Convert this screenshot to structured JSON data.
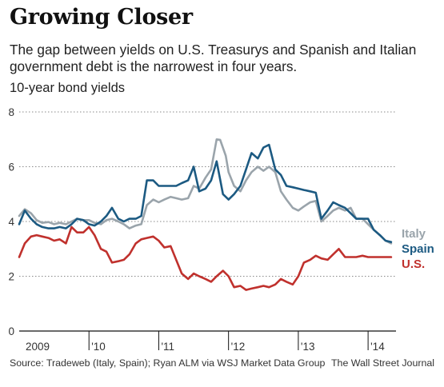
{
  "header": {
    "title": "Growing Closer",
    "subtitle": "The gap between yields on U.S. Treasurys and Spanish and Italian government debt is the narrowest in four years.",
    "unit_label": "10-year bond yields"
  },
  "footer": {
    "source": "Source: Tradeweb (Italy, Spain); Ryan ALM via WSJ Market Data Group",
    "credit": "The Wall Street Journal"
  },
  "chart_data": {
    "type": "line",
    "title": "Growing Closer",
    "ylabel": "10-year bond yields",
    "xlim": [
      2009.0,
      2014.4
    ],
    "ylim": [
      0,
      8
    ],
    "yticks": [
      0,
      2,
      4,
      6,
      8
    ],
    "xticks": [
      {
        "label": "2009",
        "value": 2009.0
      },
      {
        "label": "'10",
        "value": 2010.0
      },
      {
        "label": "'11",
        "value": 2011.0
      },
      {
        "label": "'12",
        "value": 2012.0
      },
      {
        "label": "'13",
        "value": 2013.0
      },
      {
        "label": "'14",
        "value": 2014.0
      }
    ],
    "grid": "horizontal-dotted",
    "legend": "right-end-labels",
    "series": [
      {
        "name": "Italy",
        "color": "#9aa4ab",
        "points": [
          [
            2009.0,
            4.2
          ],
          [
            2009.08,
            4.45
          ],
          [
            2009.17,
            4.3
          ],
          [
            2009.25,
            4.05
          ],
          [
            2009.33,
            3.95
          ],
          [
            2009.42,
            3.98
          ],
          [
            2009.5,
            3.9
          ],
          [
            2009.58,
            3.95
          ],
          [
            2009.67,
            3.9
          ],
          [
            2009.75,
            4.0
          ],
          [
            2009.83,
            4.1
          ],
          [
            2009.92,
            4.05
          ],
          [
            2010.0,
            4.05
          ],
          [
            2010.08,
            3.95
          ],
          [
            2010.17,
            3.9
          ],
          [
            2010.25,
            4.05
          ],
          [
            2010.33,
            4.1
          ],
          [
            2010.42,
            4.0
          ],
          [
            2010.5,
            3.9
          ],
          [
            2010.58,
            3.75
          ],
          [
            2010.67,
            3.85
          ],
          [
            2010.75,
            3.9
          ],
          [
            2010.83,
            4.6
          ],
          [
            2010.92,
            4.8
          ],
          [
            2011.0,
            4.7
          ],
          [
            2011.08,
            4.8
          ],
          [
            2011.17,
            4.9
          ],
          [
            2011.25,
            4.85
          ],
          [
            2011.33,
            4.8
          ],
          [
            2011.42,
            4.85
          ],
          [
            2011.5,
            5.3
          ],
          [
            2011.58,
            5.2
          ],
          [
            2011.67,
            5.6
          ],
          [
            2011.75,
            5.9
          ],
          [
            2011.83,
            7.0
          ],
          [
            2011.88,
            6.98
          ],
          [
            2011.96,
            6.4
          ],
          [
            2012.0,
            5.8
          ],
          [
            2012.08,
            5.3
          ],
          [
            2012.17,
            5.1
          ],
          [
            2012.25,
            5.5
          ],
          [
            2012.33,
            5.8
          ],
          [
            2012.42,
            6.0
          ],
          [
            2012.5,
            5.85
          ],
          [
            2012.58,
            6.0
          ],
          [
            2012.67,
            5.8
          ],
          [
            2012.75,
            5.1
          ],
          [
            2012.83,
            4.8
          ],
          [
            2012.92,
            4.5
          ],
          [
            2013.0,
            4.4
          ],
          [
            2013.08,
            4.55
          ],
          [
            2013.17,
            4.7
          ],
          [
            2013.25,
            4.75
          ],
          [
            2013.33,
            4.0
          ],
          [
            2013.42,
            4.2
          ],
          [
            2013.5,
            4.4
          ],
          [
            2013.58,
            4.5
          ],
          [
            2013.67,
            4.4
          ],
          [
            2013.75,
            4.5
          ],
          [
            2013.83,
            4.1
          ],
          [
            2013.92,
            4.1
          ],
          [
            2014.0,
            3.9
          ],
          [
            2014.08,
            3.7
          ],
          [
            2014.17,
            3.5
          ],
          [
            2014.25,
            3.3
          ],
          [
            2014.33,
            3.2
          ]
        ]
      },
      {
        "name": "Spain",
        "color": "#1c5a82",
        "points": [
          [
            2009.0,
            3.9
          ],
          [
            2009.08,
            4.4
          ],
          [
            2009.17,
            4.1
          ],
          [
            2009.25,
            3.9
          ],
          [
            2009.33,
            3.8
          ],
          [
            2009.42,
            3.75
          ],
          [
            2009.5,
            3.75
          ],
          [
            2009.58,
            3.8
          ],
          [
            2009.67,
            3.75
          ],
          [
            2009.75,
            3.9
          ],
          [
            2009.83,
            4.1
          ],
          [
            2009.92,
            4.05
          ],
          [
            2010.0,
            3.9
          ],
          [
            2010.08,
            3.85
          ],
          [
            2010.17,
            4.0
          ],
          [
            2010.25,
            4.2
          ],
          [
            2010.33,
            4.5
          ],
          [
            2010.42,
            4.1
          ],
          [
            2010.5,
            4.0
          ],
          [
            2010.58,
            4.1
          ],
          [
            2010.67,
            4.1
          ],
          [
            2010.75,
            4.2
          ],
          [
            2010.83,
            5.5
          ],
          [
            2010.92,
            5.5
          ],
          [
            2011.0,
            5.3
          ],
          [
            2011.08,
            5.3
          ],
          [
            2011.17,
            5.3
          ],
          [
            2011.25,
            5.3
          ],
          [
            2011.33,
            5.4
          ],
          [
            2011.42,
            5.5
          ],
          [
            2011.5,
            6.0
          ],
          [
            2011.58,
            5.1
          ],
          [
            2011.67,
            5.2
          ],
          [
            2011.75,
            5.5
          ],
          [
            2011.83,
            6.2
          ],
          [
            2011.92,
            5.0
          ],
          [
            2012.0,
            4.8
          ],
          [
            2012.08,
            5.0
          ],
          [
            2012.17,
            5.3
          ],
          [
            2012.25,
            5.9
          ],
          [
            2012.33,
            6.5
          ],
          [
            2012.42,
            6.3
          ],
          [
            2012.5,
            6.7
          ],
          [
            2012.58,
            6.8
          ],
          [
            2012.67,
            5.9
          ],
          [
            2012.75,
            5.7
          ],
          [
            2012.83,
            5.3
          ],
          [
            2012.92,
            5.25
          ],
          [
            2013.0,
            5.2
          ],
          [
            2013.08,
            5.15
          ],
          [
            2013.17,
            5.1
          ],
          [
            2013.25,
            5.05
          ],
          [
            2013.33,
            4.1
          ],
          [
            2013.42,
            4.4
          ],
          [
            2013.5,
            4.7
          ],
          [
            2013.58,
            4.6
          ],
          [
            2013.67,
            4.5
          ],
          [
            2013.75,
            4.3
          ],
          [
            2013.83,
            4.1
          ],
          [
            2013.92,
            4.1
          ],
          [
            2014.0,
            4.1
          ],
          [
            2014.08,
            3.7
          ],
          [
            2014.17,
            3.5
          ],
          [
            2014.25,
            3.3
          ],
          [
            2014.33,
            3.25
          ]
        ]
      },
      {
        "name": "U.S.",
        "color": "#c0312d",
        "points": [
          [
            2009.0,
            2.7
          ],
          [
            2009.08,
            3.2
          ],
          [
            2009.17,
            3.45
          ],
          [
            2009.25,
            3.5
          ],
          [
            2009.33,
            3.45
          ],
          [
            2009.42,
            3.4
          ],
          [
            2009.5,
            3.3
          ],
          [
            2009.58,
            3.35
          ],
          [
            2009.67,
            3.2
          ],
          [
            2009.75,
            3.8
          ],
          [
            2009.83,
            3.6
          ],
          [
            2009.92,
            3.6
          ],
          [
            2010.0,
            3.8
          ],
          [
            2010.08,
            3.5
          ],
          [
            2010.17,
            3.0
          ],
          [
            2010.25,
            2.9
          ],
          [
            2010.33,
            2.5
          ],
          [
            2010.42,
            2.55
          ],
          [
            2010.5,
            2.6
          ],
          [
            2010.58,
            2.8
          ],
          [
            2010.67,
            3.2
          ],
          [
            2010.75,
            3.35
          ],
          [
            2010.83,
            3.4
          ],
          [
            2010.92,
            3.45
          ],
          [
            2011.0,
            3.3
          ],
          [
            2011.08,
            3.05
          ],
          [
            2011.17,
            3.1
          ],
          [
            2011.25,
            2.6
          ],
          [
            2011.33,
            2.1
          ],
          [
            2011.42,
            1.9
          ],
          [
            2011.5,
            2.1
          ],
          [
            2011.58,
            2.0
          ],
          [
            2011.67,
            1.9
          ],
          [
            2011.75,
            1.8
          ],
          [
            2011.83,
            2.0
          ],
          [
            2011.92,
            2.2
          ],
          [
            2012.0,
            2.0
          ],
          [
            2012.08,
            1.6
          ],
          [
            2012.17,
            1.65
          ],
          [
            2012.25,
            1.5
          ],
          [
            2012.33,
            1.55
          ],
          [
            2012.42,
            1.6
          ],
          [
            2012.5,
            1.65
          ],
          [
            2012.58,
            1.6
          ],
          [
            2012.67,
            1.7
          ],
          [
            2012.75,
            1.9
          ],
          [
            2012.83,
            1.8
          ],
          [
            2012.92,
            1.7
          ],
          [
            2013.0,
            2.0
          ],
          [
            2013.08,
            2.5
          ],
          [
            2013.17,
            2.6
          ],
          [
            2013.25,
            2.75
          ],
          [
            2013.33,
            2.65
          ],
          [
            2013.42,
            2.6
          ],
          [
            2013.5,
            2.8
          ],
          [
            2013.58,
            3.0
          ],
          [
            2013.67,
            2.7
          ],
          [
            2013.75,
            2.7
          ],
          [
            2013.83,
            2.7
          ],
          [
            2013.92,
            2.75
          ],
          [
            2014.0,
            2.7
          ],
          [
            2014.08,
            2.7
          ],
          [
            2014.17,
            2.7
          ],
          [
            2014.25,
            2.7
          ],
          [
            2014.33,
            2.7
          ]
        ]
      }
    ]
  }
}
